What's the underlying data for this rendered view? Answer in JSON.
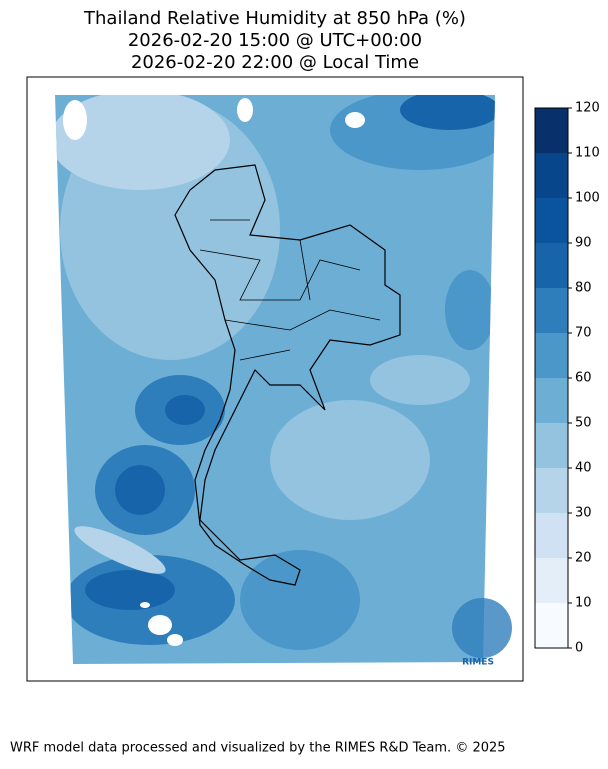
{
  "title_lines": [
    "Thailand Relative Humidity at 850 hPa (%)",
    "2026-02-20 15:00 @ UTC+00:00",
    "2026-02-20 22:00 @ Local Time"
  ],
  "colorbar": {
    "clim": [
      0,
      120
    ],
    "ticks": [
      0,
      10,
      20,
      30,
      40,
      50,
      60,
      70,
      80,
      90,
      100,
      110,
      120
    ],
    "colors": [
      "#f7fbff",
      "#e3eef9",
      "#cfe1f2",
      "#b5d4e9",
      "#93c3df",
      "#6daed5",
      "#4b97c9",
      "#2f7ebc",
      "#1864aa",
      "#0a539e",
      "#08468b",
      "#08306b"
    ]
  },
  "logo": "RIMES",
  "footer": "WRF model data processed and visualized by the RIMES R&D Team. © 2025"
}
